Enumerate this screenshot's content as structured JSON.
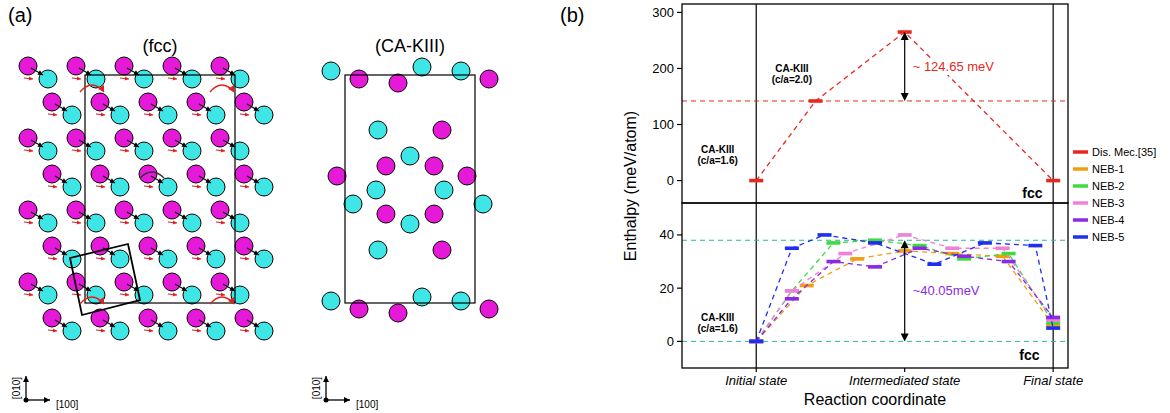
{
  "diagram": {
    "label": "(a)",
    "panels": [
      {
        "title": "(fcc)",
        "axes": [
          "[010]",
          "[100]"
        ]
      },
      {
        "title": "(CA-KIII)",
        "axes": [
          "[010]",
          "[100]"
        ]
      }
    ]
  },
  "panel_label": "(b)",
  "chart_data": [
    {
      "type": "line",
      "xlim": [
        -2.5,
        10.5
      ],
      "ylim": [
        -40,
        315
      ],
      "yticks": [
        0,
        100,
        200,
        300
      ],
      "tick_labels": "y",
      "grid": false,
      "legend": "right",
      "color": "#e8281e",
      "vlines": [
        0,
        10
      ],
      "hlines": [
        142
      ],
      "series": [
        {
          "name": "Dis. Mec.[35]",
          "color": "#e8281e",
          "line_style": "dashed",
          "marker": "dash",
          "x": [
            0,
            2,
            5,
            10
          ],
          "values": [
            0,
            142,
            265,
            0
          ]
        }
      ],
      "labels": [
        {
          "text": "CA-KIII (c/a=1.6)",
          "x": -1.3,
          "y": 45
        },
        {
          "text": "CA-KIII (c/a=2.0)",
          "x": 1.2,
          "y": 190
        },
        {
          "text": "fcc",
          "x": 9.3,
          "y": -22
        }
      ],
      "annotation": {
        "text": "~ 124.65 meV",
        "x": 5,
        "from": 142,
        "to": 265,
        "color": "#e8281e"
      }
    },
    {
      "type": "line",
      "xlim": [
        -2.5,
        10.5
      ],
      "ylim": [
        -10,
        52
      ],
      "yticks": [
        0,
        20,
        40
      ],
      "xticks": [
        {
          "value": 0,
          "label": "Initial state"
        },
        {
          "value": 5,
          "label": "Intermediated state"
        },
        {
          "value": 10,
          "label": "Final state"
        }
      ],
      "grid": false,
      "color": "#2ab5a5",
      "vlines": [
        0,
        10
      ],
      "hlines": [
        0,
        38
      ],
      "x_label": "Reaction coordinate",
      "y_label": "Enthalpy (meV/atom)",
      "series": [
        {
          "name": "NEB-1",
          "color": "#f39c12",
          "line_style": "dashed",
          "marker": "dash",
          "x": [
            0,
            1.7,
            3.4,
            5,
            6.6,
            8.3,
            10
          ],
          "values": [
            0,
            21,
            31,
            34,
            33,
            32,
            6
          ]
        },
        {
          "name": "NEB-2",
          "color": "#3ddc3d",
          "line_style": "dashed",
          "marker": "dash",
          "x": [
            0,
            1.2,
            2.6,
            4,
            5.5,
            7,
            8.5,
            10
          ],
          "values": [
            0,
            19,
            37,
            38,
            36,
            31,
            33,
            7
          ]
        },
        {
          "name": "NEB-3",
          "color": "#f080d8",
          "line_style": "dashed",
          "marker": "dash",
          "x": [
            0,
            1.2,
            3,
            5,
            6.6,
            8.3,
            10
          ],
          "values": [
            0,
            19,
            33,
            40,
            35,
            35,
            8
          ]
        },
        {
          "name": "NEB-4",
          "color": "#8a2be2",
          "line_style": "dashed",
          "marker": "dash",
          "x": [
            0,
            1.2,
            2.6,
            4,
            5.5,
            7,
            8.5,
            10
          ],
          "values": [
            0,
            16,
            30,
            28,
            35,
            32,
            30,
            9
          ]
        },
        {
          "name": "NEB-5",
          "color": "#1f2ff0",
          "line_style": "dashed",
          "marker": "dash",
          "x": [
            0,
            1.2,
            2.3,
            4,
            6,
            7.7,
            9.4,
            10
          ],
          "values": [
            0,
            35,
            40,
            37,
            29,
            37,
            36,
            5
          ]
        }
      ],
      "labels": [
        {
          "text": "CA-KIII (c/a=1.6)",
          "x": -1.3,
          "y": 7
        },
        {
          "text": "fcc",
          "x": 9.2,
          "y": -5
        }
      ],
      "annotation": {
        "text": "~40.05meV",
        "x": 5,
        "from": 0,
        "to": 38,
        "color": "#8a2be2"
      }
    }
  ]
}
